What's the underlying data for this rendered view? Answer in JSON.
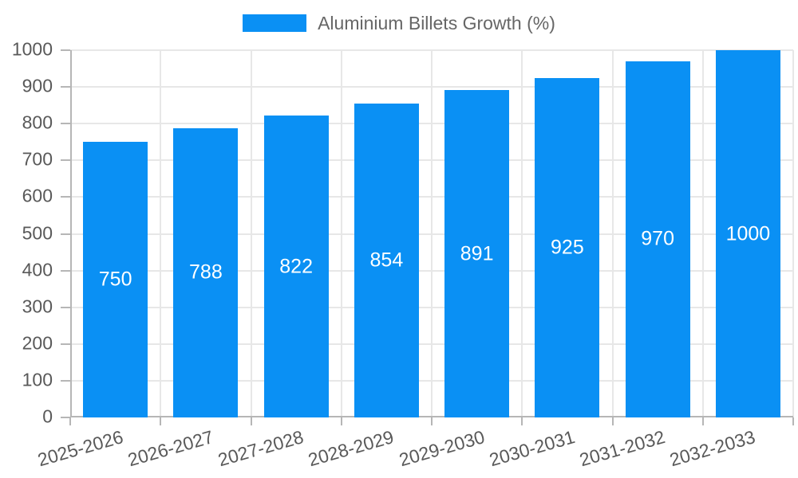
{
  "chart_data": {
    "type": "bar",
    "title": "",
    "legend": {
      "label": "Aluminium Billets Growth (%)",
      "position": "top"
    },
    "categories": [
      "2025-2026",
      "2026-2027",
      "2027-2028",
      "2028-2029",
      "2029-2030",
      "2030-2031",
      "2031-2032",
      "2032-2033"
    ],
    "series": [
      {
        "name": "Aluminium Billets Growth (%)",
        "values": [
          750,
          788,
          822,
          854,
          891,
          925,
          970,
          1000
        ]
      }
    ],
    "value_labels": [
      "750",
      "788",
      "822",
      "854",
      "891",
      "925",
      "970",
      "1000"
    ],
    "xlabel": "",
    "ylabel": "",
    "ylim": [
      0,
      1000
    ],
    "ytick_step": 100,
    "yticks": [
      0,
      100,
      200,
      300,
      400,
      500,
      600,
      700,
      800,
      900,
      1000
    ],
    "grid": true,
    "legend_position": "top",
    "x_label_rotation_deg": -16,
    "colors": {
      "bar": "#0a90f4",
      "value_label": "#ffffff",
      "gridline": "#e7e7e7",
      "axis_line": "#b6b6b6",
      "tick_mark": "#b6b6b6",
      "tick_label": "#595959",
      "legend_text": "#666666",
      "background": "#ffffff"
    }
  }
}
